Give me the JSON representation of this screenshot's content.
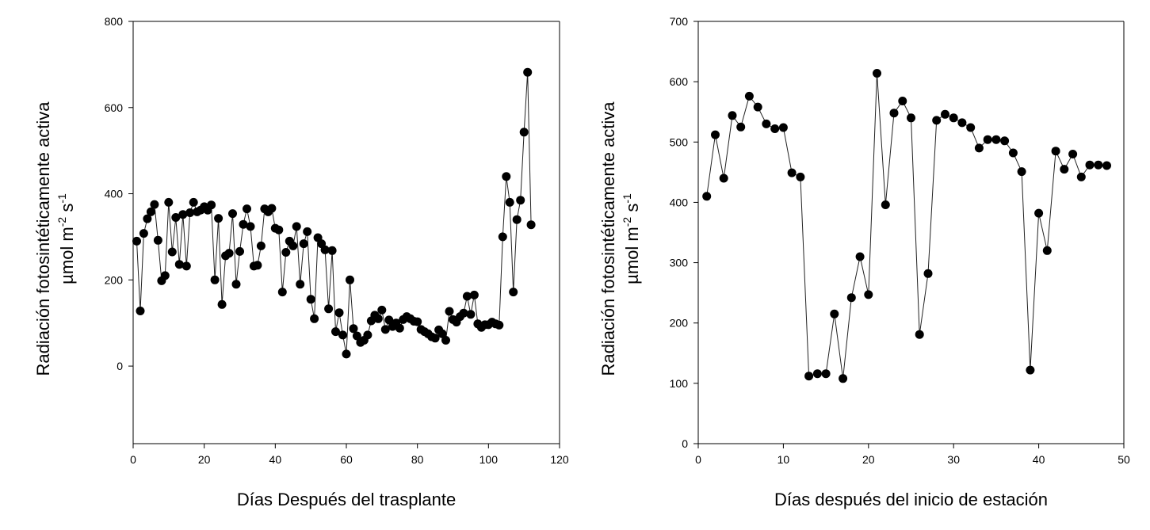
{
  "colors": {
    "marker": "#000000",
    "line": "#222222",
    "axis": "#000000"
  },
  "chart_data": [
    {
      "type": "line",
      "markers": "filled-circle",
      "xlabel": "Días Después del trasplante",
      "ylabel_line1": "Radiación fotosintéticamente activa",
      "ylabel_line2_prefix": "µmol m",
      "ylabel_exp1": "-2",
      "ylabel_mid": " s",
      "ylabel_exp2": "-1",
      "xlim": [
        0,
        120
      ],
      "ylim": [
        -180,
        800
      ],
      "xticks": [
        0,
        20,
        40,
        60,
        80,
        100,
        120
      ],
      "yticks": [
        0,
        200,
        400,
        600,
        800
      ],
      "xtick_labels": [
        "0",
        "20",
        "40",
        "60",
        "80",
        "100",
        "120"
      ],
      "ytick_labels": [
        "0",
        "200",
        "400",
        "600",
        "800"
      ],
      "grid": false,
      "x": [
        1,
        2,
        3,
        4,
        5,
        6,
        7,
        8,
        9,
        10,
        11,
        12,
        13,
        14,
        15,
        16,
        17,
        18,
        19,
        20,
        21,
        22,
        23,
        24,
        25,
        26,
        27,
        28,
        29,
        30,
        31,
        32,
        33,
        34,
        35,
        36,
        37,
        38,
        39,
        40,
        41,
        42,
        43,
        44,
        45,
        46,
        47,
        48,
        49,
        50,
        51,
        52,
        53,
        54,
        55,
        56,
        57,
        58,
        59,
        60,
        61,
        62,
        63,
        64,
        65,
        66,
        67,
        68,
        69,
        70,
        71,
        72,
        73,
        74,
        75,
        76,
        77,
        78,
        79,
        80,
        81,
        82,
        83,
        84,
        85,
        86,
        87,
        88,
        89,
        90,
        91,
        92,
        93,
        94,
        95,
        96,
        97,
        98,
        99,
        100,
        101,
        102,
        103,
        104,
        105,
        106,
        107,
        108,
        109,
        110,
        111,
        112
      ],
      "y": [
        290,
        128,
        308,
        342,
        358,
        375,
        292,
        198,
        210,
        380,
        265,
        345,
        236,
        352,
        232,
        356,
        380,
        358,
        362,
        370,
        362,
        374,
        200,
        343,
        143,
        256,
        262,
        354,
        190,
        266,
        329,
        365,
        324,
        232,
        234,
        279,
        365,
        358,
        366,
        320,
        316,
        172,
        264,
        290,
        279,
        324,
        190,
        284,
        312,
        155,
        110,
        298,
        284,
        270,
        133,
        268,
        80,
        124,
        72,
        28,
        200,
        87,
        70,
        55,
        60,
        72,
        105,
        118,
        110,
        130,
        85,
        107,
        92,
        100,
        88,
        108,
        115,
        110,
        104,
        103,
        85,
        80,
        75,
        68,
        65,
        84,
        75,
        60,
        127,
        108,
        102,
        115,
        123,
        162,
        120,
        165,
        98,
        90,
        96,
        96,
        102,
        98,
        95,
        300,
        440,
        380,
        172,
        340,
        385,
        543,
        682,
        328
      ]
    },
    {
      "type": "line",
      "markers": "filled-circle",
      "xlabel": "Días después del inicio de estación",
      "ylabel_line1": "Radiación fotosintéticamente activa",
      "ylabel_line2_prefix": "µmol m",
      "ylabel_exp1": "-2",
      "ylabel_mid": " s",
      "ylabel_exp2": "-1",
      "xlim": [
        0,
        50
      ],
      "ylim": [
        0,
        700
      ],
      "xticks": [
        0,
        10,
        20,
        30,
        40,
        50
      ],
      "yticks": [
        0,
        100,
        200,
        300,
        400,
        500,
        600,
        700
      ],
      "xtick_labels": [
        "0",
        "10",
        "20",
        "30",
        "40",
        "50"
      ],
      "ytick_labels": [
        "0",
        "100",
        "200",
        "300",
        "400",
        "500",
        "600",
        "700"
      ],
      "grid": false,
      "x": [
        1,
        2,
        3,
        4,
        5,
        6,
        7,
        8,
        9,
        10,
        11,
        12,
        13,
        14,
        15,
        16,
        17,
        18,
        19,
        20,
        21,
        22,
        23,
        24,
        25,
        26,
        27,
        28,
        29,
        30,
        31,
        32,
        33,
        34,
        35,
        36,
        37,
        38,
        39,
        40,
        41,
        42,
        43,
        44,
        45,
        46,
        47,
        48
      ],
      "y": [
        410,
        512,
        440,
        544,
        525,
        576,
        558,
        530,
        522,
        524,
        449,
        442,
        112,
        116,
        116,
        215,
        108,
        242,
        310,
        247,
        614,
        396,
        548,
        568,
        540,
        181,
        282,
        536,
        546,
        540,
        532,
        524,
        490,
        504,
        504,
        502,
        482,
        451,
        122,
        382,
        320,
        485,
        455,
        480,
        442,
        462,
        462,
        461
      ]
    }
  ]
}
